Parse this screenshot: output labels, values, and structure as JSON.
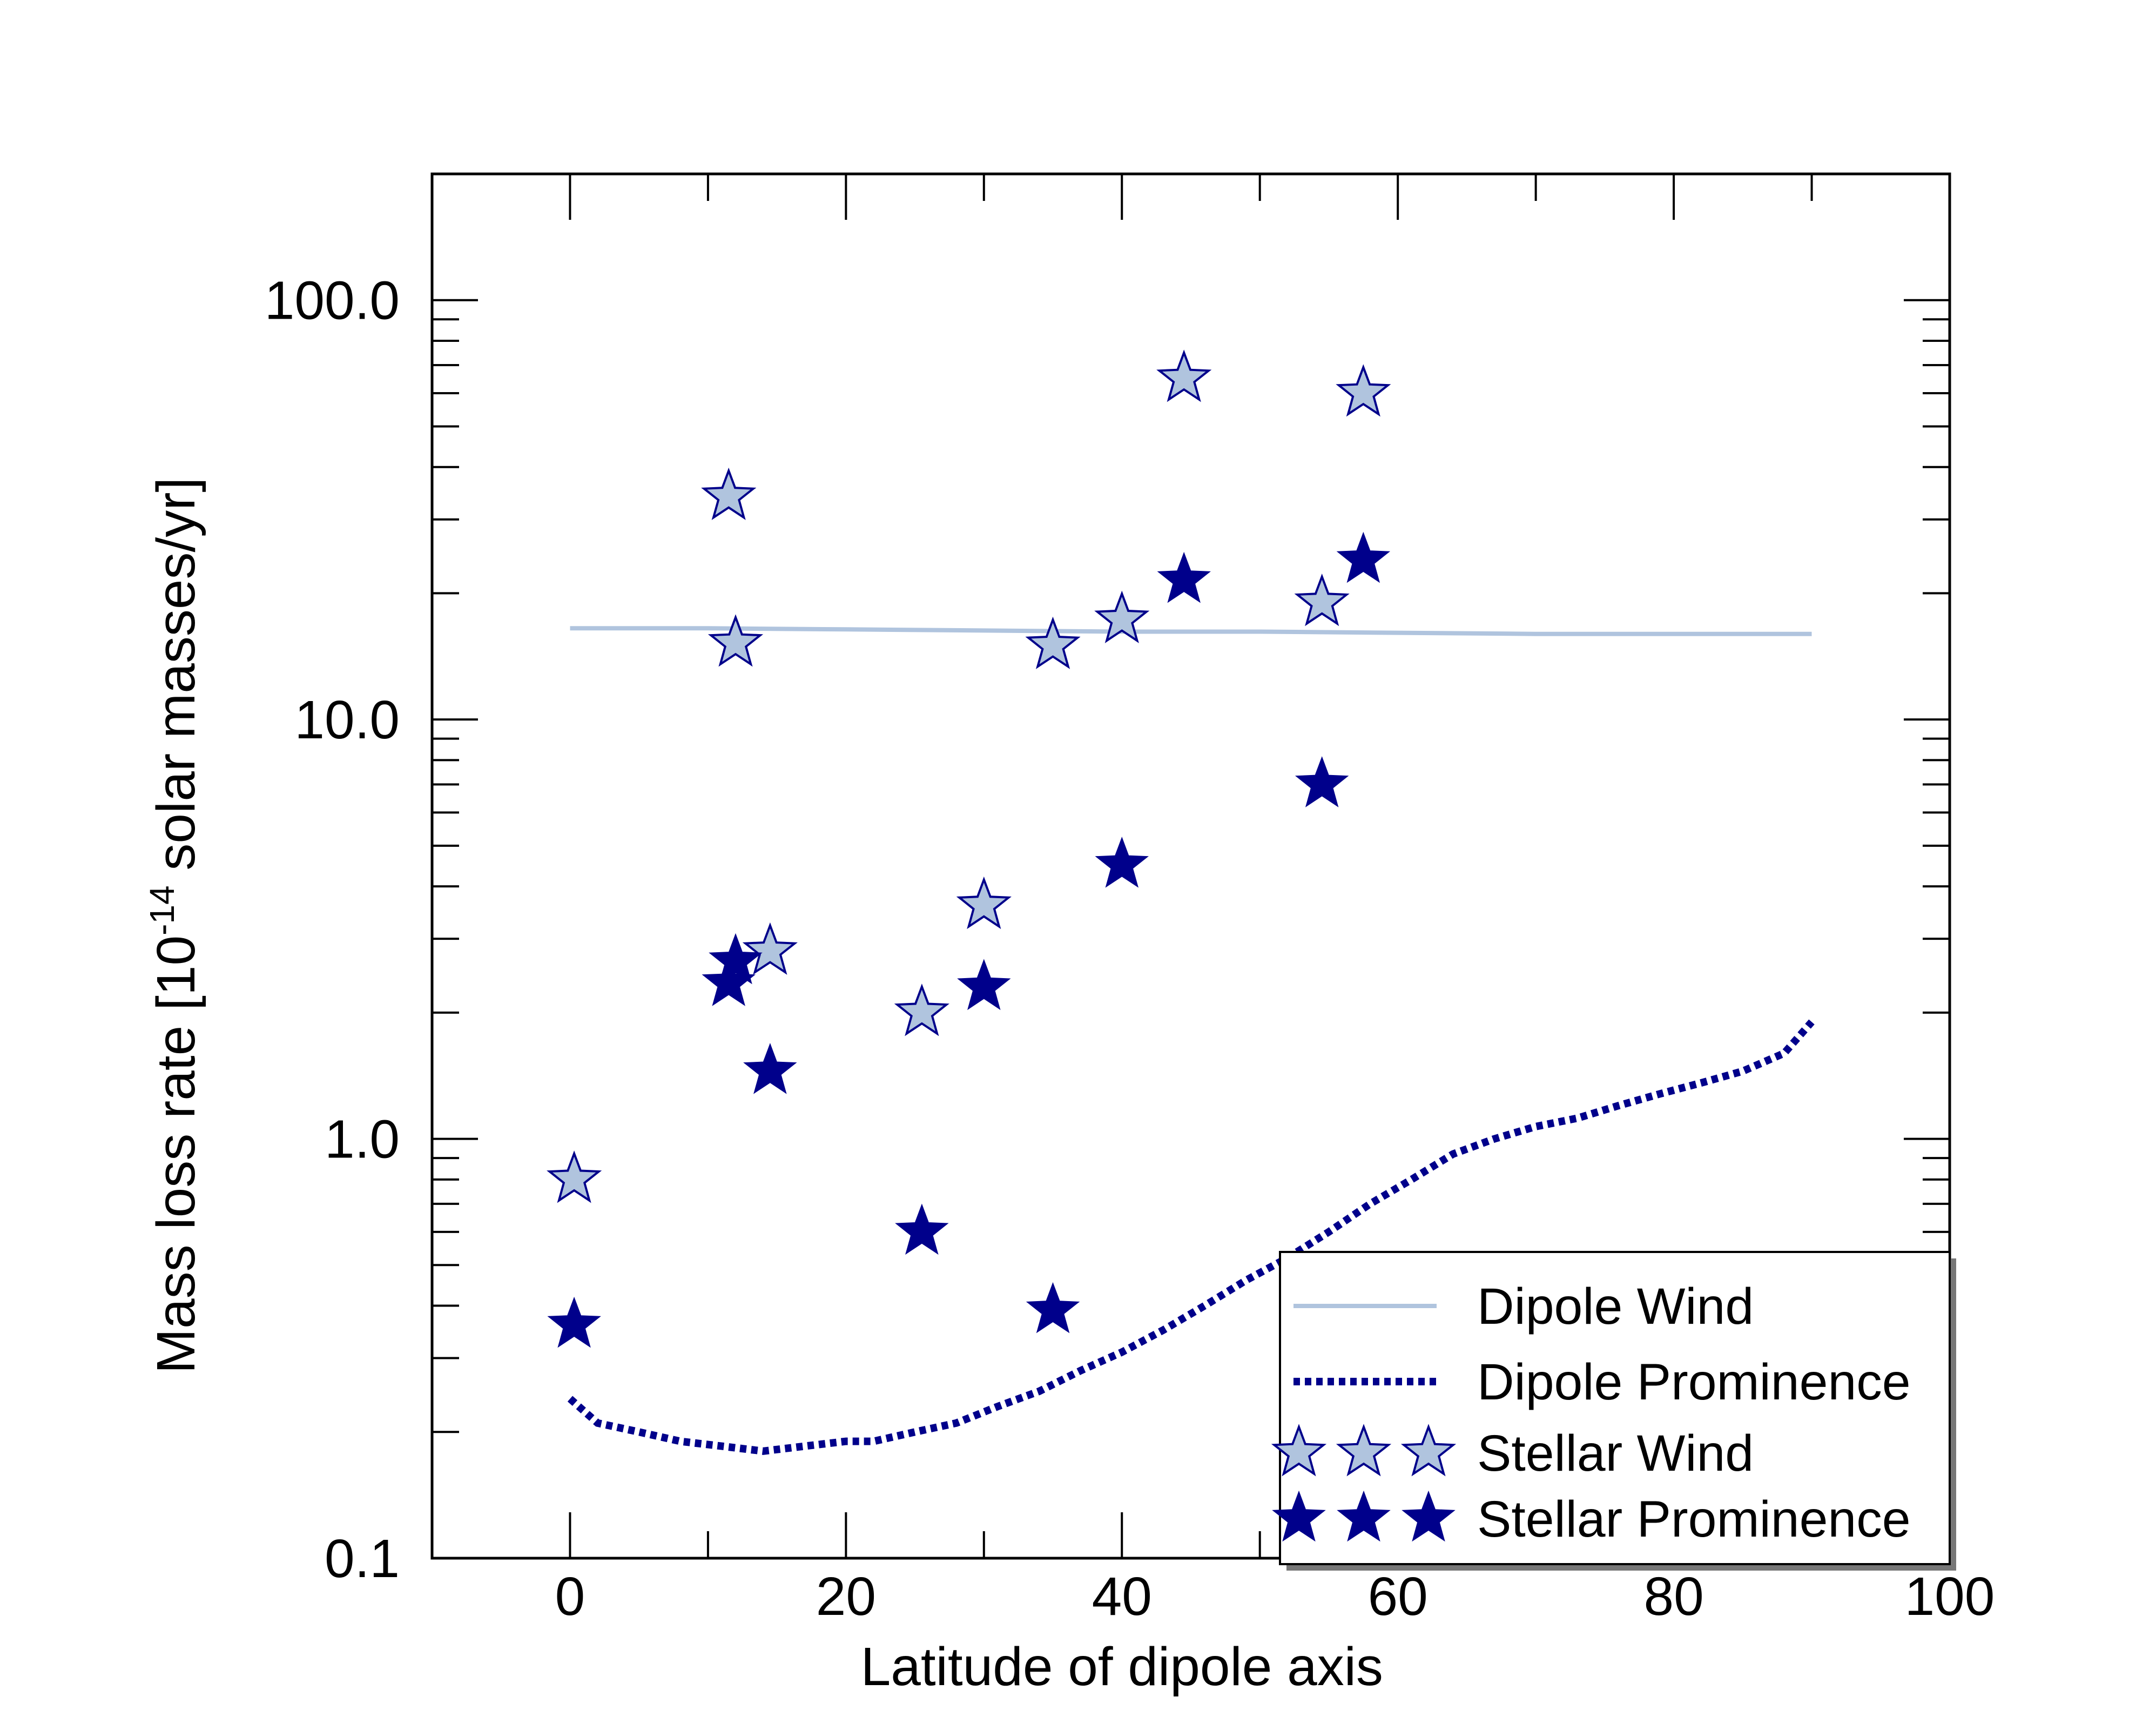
{
  "chart_data": {
    "type": "scatter",
    "title": "",
    "xlabel": "Latitude of dipole axis",
    "ylabel": {
      "prefix": "Mass loss rate [10",
      "exponent": "-14",
      "suffix": " solar masses/yr]"
    },
    "xlim": [
      -10,
      100
    ],
    "ylim": [
      0.1,
      200
    ],
    "yscale": "log",
    "grid": false,
    "x_ticks": [
      "0",
      "20",
      "40",
      "60",
      "80",
      "100"
    ],
    "y_ticks": [
      "0.1",
      "1.0",
      "10.0",
      "100.0"
    ],
    "legend_position": "bottom-right",
    "colors": {
      "wind": "#b0c4de",
      "prominence": "#00008b",
      "axis": "#000000"
    },
    "series": [
      {
        "name": "Dipole Wind",
        "kind": "line",
        "style": "solid",
        "points": [
          [
            0,
            16.5
          ],
          [
            10,
            16.5
          ],
          [
            20,
            16.4
          ],
          [
            30,
            16.3
          ],
          [
            40,
            16.2
          ],
          [
            50,
            16.2
          ],
          [
            60,
            16.1
          ],
          [
            70,
            16.0
          ],
          [
            80,
            16.0
          ],
          [
            90,
            16.0
          ]
        ]
      },
      {
        "name": "Dipole Prominence",
        "kind": "line",
        "style": "dotted",
        "points": [
          [
            0,
            0.24
          ],
          [
            2,
            0.21
          ],
          [
            5,
            0.2
          ],
          [
            8,
            0.19
          ],
          [
            11,
            0.185
          ],
          [
            14,
            0.18
          ],
          [
            17,
            0.185
          ],
          [
            20,
            0.19
          ],
          [
            22,
            0.19
          ],
          [
            25,
            0.2
          ],
          [
            28,
            0.21
          ],
          [
            31,
            0.23
          ],
          [
            34,
            0.25
          ],
          [
            37,
            0.28
          ],
          [
            40,
            0.31
          ],
          [
            43,
            0.35
          ],
          [
            46,
            0.4
          ],
          [
            49,
            0.46
          ],
          [
            52,
            0.52
          ],
          [
            55,
            0.6
          ],
          [
            58,
            0.7
          ],
          [
            61,
            0.8
          ],
          [
            64,
            0.92
          ],
          [
            67,
            1.0
          ],
          [
            70,
            1.07
          ],
          [
            73,
            1.12
          ],
          [
            76,
            1.2
          ],
          [
            79,
            1.28
          ],
          [
            82,
            1.36
          ],
          [
            85,
            1.45
          ],
          [
            88,
            1.6
          ],
          [
            90,
            1.9
          ]
        ]
      },
      {
        "name": "Stellar Wind",
        "kind": "scatter",
        "marker": "hollow-star",
        "points": [
          [
            0.3,
            0.8
          ],
          [
            11.5,
            34
          ],
          [
            12,
            15.2
          ],
          [
            14.5,
            2.8
          ],
          [
            25.5,
            2.0
          ],
          [
            30,
            3.6
          ],
          [
            35,
            15
          ],
          [
            40,
            17.3
          ],
          [
            44.5,
            65
          ],
          [
            54.5,
            19
          ],
          [
            57.5,
            60
          ]
        ]
      },
      {
        "name": "Stellar Prominence",
        "kind": "scatter",
        "marker": "filled-star",
        "points": [
          [
            0.3,
            0.36
          ],
          [
            11.5,
            2.35
          ],
          [
            12,
            2.65
          ],
          [
            14.5,
            1.45
          ],
          [
            25.5,
            0.6
          ],
          [
            30,
            2.3
          ],
          [
            35,
            0.39
          ],
          [
            40,
            4.5
          ],
          [
            44.5,
            21.5
          ],
          [
            54.5,
            7.0
          ],
          [
            57.5,
            24
          ]
        ]
      }
    ]
  }
}
